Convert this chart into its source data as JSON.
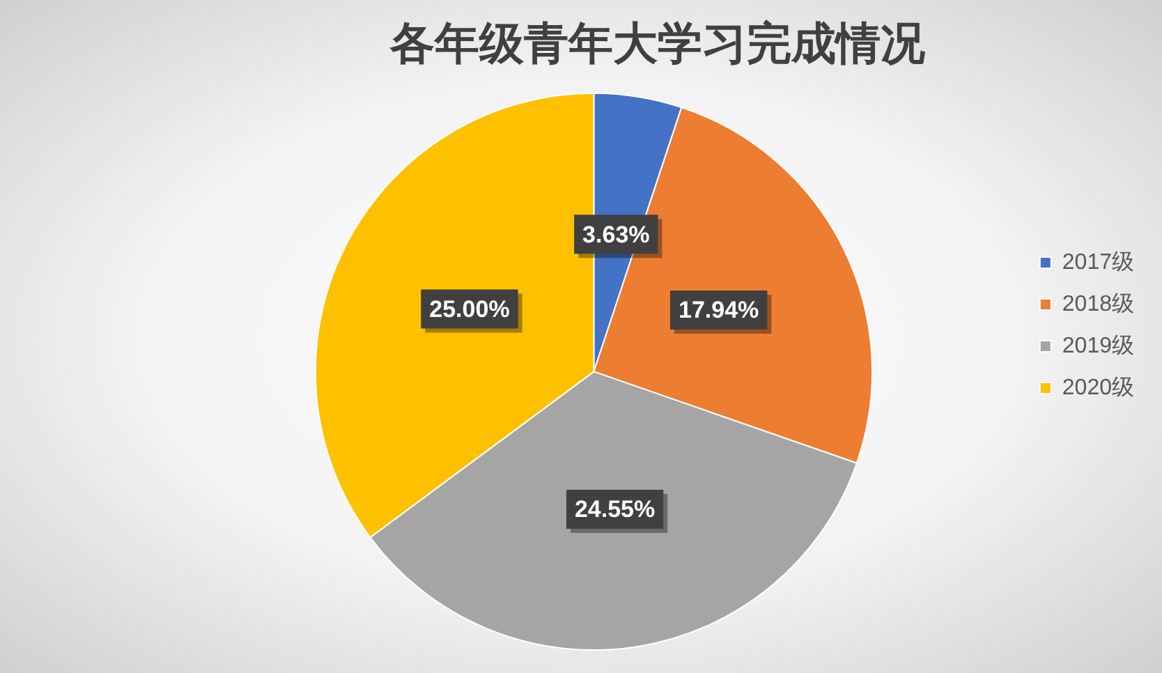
{
  "chart_data": {
    "type": "pie",
    "title": "各年级青年大学习完成情况",
    "categories": [
      "2017级",
      "2018级",
      "2019级",
      "2020级"
    ],
    "values": [
      3.63,
      17.94,
      24.55,
      25.0
    ],
    "value_labels": [
      "3.63%",
      "17.94%",
      "24.55%",
      "25.00%"
    ],
    "colors": [
      "#4472c4",
      "#ed7d31",
      "#a5a5a5",
      "#ffc000"
    ],
    "legend": "right"
  }
}
